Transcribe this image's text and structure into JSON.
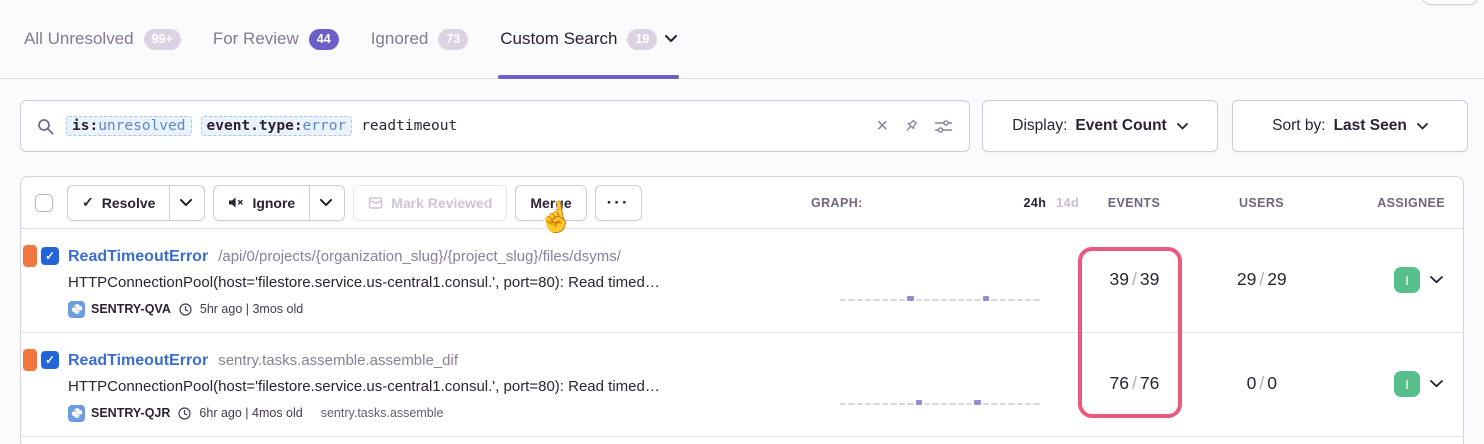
{
  "tabs": [
    {
      "label": "All Unresolved",
      "badge": "99+"
    },
    {
      "label": "For Review",
      "badge": "44"
    },
    {
      "label": "Ignored",
      "badge": "73"
    },
    {
      "label": "Custom Search",
      "badge": "19"
    }
  ],
  "search": {
    "tokens": [
      {
        "key": "is:",
        "value": "unresolved"
      },
      {
        "key": "event.type:",
        "value": "error"
      }
    ],
    "free_text": "readtimeout"
  },
  "display_control": {
    "label": "Display:",
    "value": "Event Count"
  },
  "sort_control": {
    "label": "Sort by:",
    "value": "Last Seen"
  },
  "toolbar": {
    "resolve": "Resolve",
    "ignore": "Ignore",
    "mark_reviewed": "Mark Reviewed",
    "merge": "Merge",
    "more": "···"
  },
  "columns": {
    "graph": "GRAPH:",
    "range_primary": "24h",
    "range_secondary": "14d",
    "events": "EVENTS",
    "users": "USERS",
    "assignee": "ASSIGNEE"
  },
  "issues": [
    {
      "title": "ReadTimeoutError",
      "subtitle": "/api/0/projects/{organization_slug}/{project_slug}/files/dsyms/",
      "message": "HTTPConnectionPool(host='filestore.service.us-central1.consul.', port=80): Read timed…",
      "project": "SENTRY-QVA",
      "age": "5hr ago | 3mos old",
      "annotation": "",
      "events": {
        "primary": "39",
        "divider": "/",
        "secondary": "39"
      },
      "users": {
        "primary": "29",
        "divider": "/",
        "secondary": "29"
      },
      "assignee_initial": "I",
      "graph": [
        0,
        0,
        0,
        0,
        0,
        0,
        0,
        0,
        1,
        0,
        0,
        0,
        0,
        0,
        0,
        0,
        0,
        1,
        0,
        0,
        0,
        0,
        0,
        0
      ]
    },
    {
      "title": "ReadTimeoutError",
      "subtitle": "sentry.tasks.assemble.assemble_dif",
      "message": "HTTPConnectionPool(host='filestore.service.us-central1.consul.', port=80): Read timed…",
      "project": "SENTRY-QJR",
      "age": "6hr ago | 4mos old",
      "annotation": "sentry.tasks.assemble",
      "events": {
        "primary": "76",
        "divider": "/",
        "secondary": "76"
      },
      "users": {
        "primary": "0",
        "divider": "/",
        "secondary": "0"
      },
      "assignee_initial": "I",
      "graph": [
        0,
        0,
        0,
        0,
        0,
        0,
        0,
        0,
        0,
        1,
        0,
        0,
        0,
        0,
        0,
        0,
        1,
        0,
        0,
        0,
        0,
        0,
        0,
        0
      ]
    }
  ],
  "colors": {
    "accent_purple": "#6C5FC7",
    "highlight_pink": "#EB5A7E",
    "link_blue": "#3B6ECF",
    "level_orange": "#F4763F",
    "assignee_green": "#57BE8C",
    "checkbox_blue": "#2264DC"
  }
}
